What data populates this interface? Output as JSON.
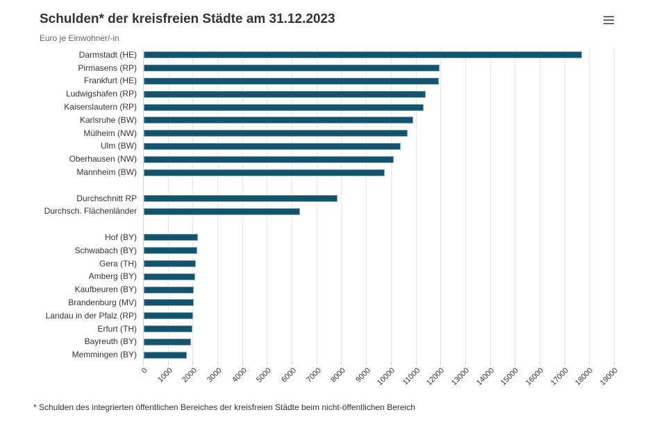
{
  "header": {
    "title": "Schulden* der kreisfreien Städte am 31.12.2023",
    "subtitle": "Euro je Einwohner/-in",
    "menu_icon": "hamburger"
  },
  "footer": {
    "note": "* Schulden des integrierten öffentlichen Bereiches der kreisfreien Städte beim nicht-öffentlichen Bereich"
  },
  "colors": {
    "bar": "#14536E",
    "bar_border": "#7FA8BE",
    "grid": "#E6E6E6",
    "axis_line": "#CCD6EB",
    "title": "#333333",
    "subtitle": "#666666",
    "label": "#333333",
    "tick_label": "#333333"
  },
  "chart_data": {
    "type": "bar",
    "orientation": "horizontal",
    "title": "Schulden* der kreisfreien Städte am 31.12.2023",
    "xlabel": "Euro je Einwohner/-in",
    "ylabel": "",
    "xlim": [
      0,
      19000
    ],
    "tick_step": 1000,
    "grid": true,
    "legend": false,
    "groups": [
      {
        "name": "hoechste-staedte",
        "items": [
          {
            "label": "Darmstadt (HE)",
            "value": 17680
          },
          {
            "label": "Pirmasens (RP)",
            "value": 11930
          },
          {
            "label": "Frankfurt (HE)",
            "value": 11920
          },
          {
            "label": "Ludwigshafen (RP)",
            "value": 11390
          },
          {
            "label": "Kaiserslautern (RP)",
            "value": 11280
          },
          {
            "label": "Karlsruhe (BW)",
            "value": 10870
          },
          {
            "label": "Mülheim (NW)",
            "value": 10660
          },
          {
            "label": "Ulm (BW)",
            "value": 10380
          },
          {
            "label": "Oberhausen (NW)",
            "value": 10080
          },
          {
            "label": "Mannheim (BW)",
            "value": 9720
          }
        ]
      },
      {
        "name": "durchschnitte",
        "items": [
          {
            "label": "Durchschnitt RP",
            "value": 7830
          },
          {
            "label": "Durchsch. Flächenländer",
            "value": 6300
          }
        ]
      },
      {
        "name": "niedrigste-staedte",
        "items": [
          {
            "label": "Hof (BY)",
            "value": 2190
          },
          {
            "label": "Schwabach (BY)",
            "value": 2150
          },
          {
            "label": "Gera (TH)",
            "value": 2090
          },
          {
            "label": "Amberg (BY)",
            "value": 2070
          },
          {
            "label": "Kaufbeuren (BY)",
            "value": 2030
          },
          {
            "label": "Brandenburg (MV)",
            "value": 2030
          },
          {
            "label": "Landau in der Pfalz (RP)",
            "value": 1980
          },
          {
            "label": "Erfurt (TH)",
            "value": 1960
          },
          {
            "label": "Bayreuth (BY)",
            "value": 1900
          },
          {
            "label": "Memmingen (BY)",
            "value": 1750
          }
        ]
      }
    ]
  }
}
